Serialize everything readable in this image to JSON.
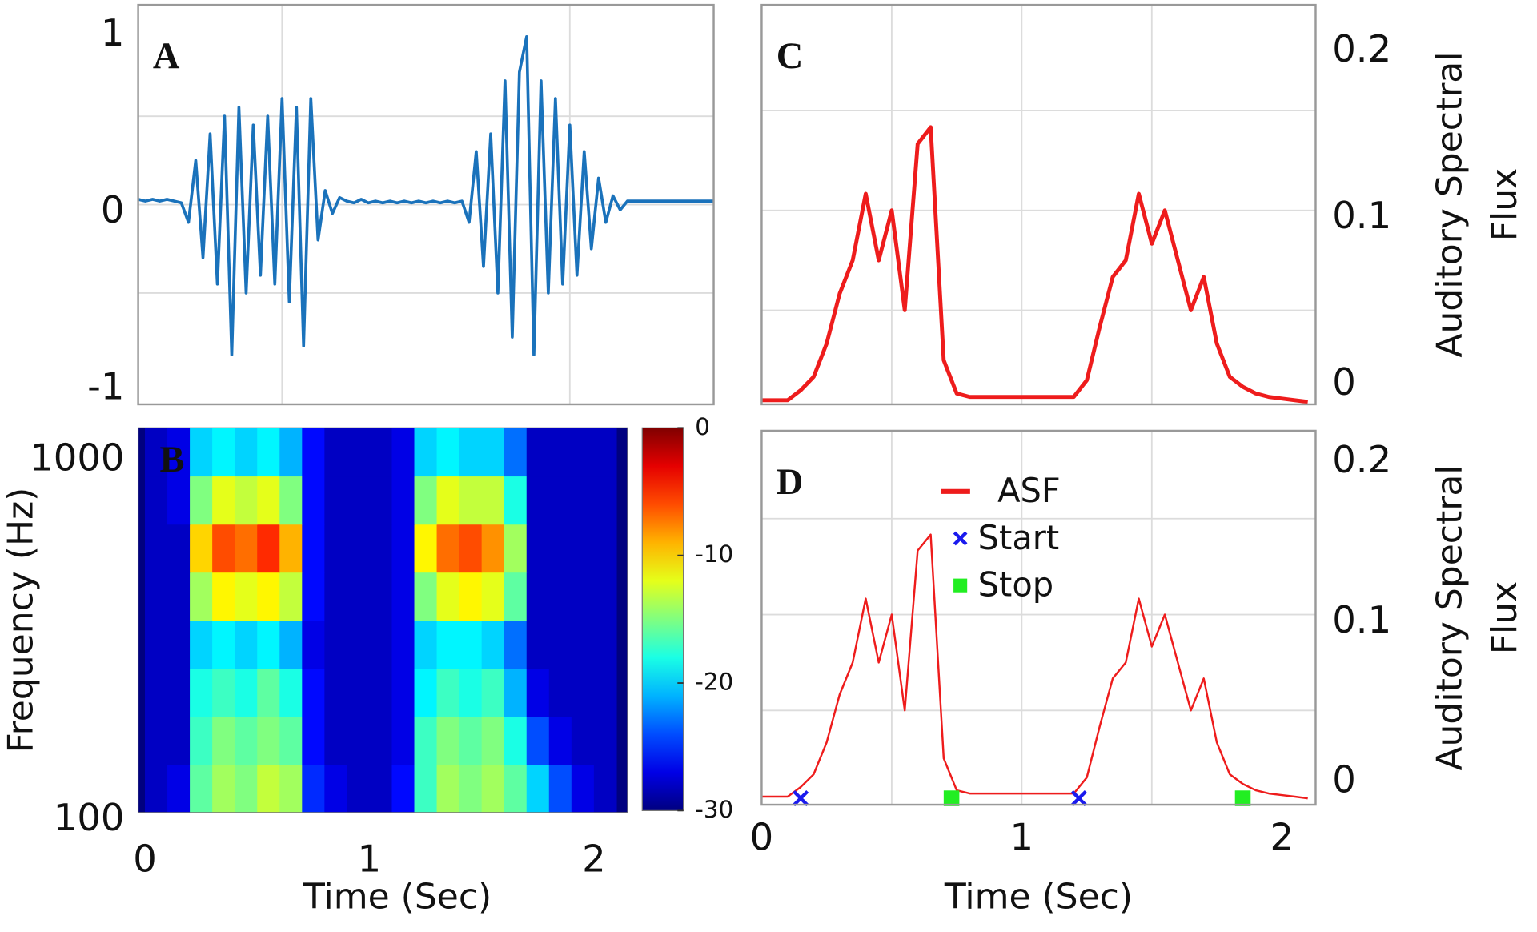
{
  "chart_data": [
    {
      "type": "line",
      "label": "A",
      "label_color": "#111",
      "xlim": [
        0,
        2
      ],
      "ylim": [
        -1.13,
        1.13
      ],
      "yticks": [
        -1,
        0,
        1
      ],
      "yaxis_side": "left",
      "xgrid": [
        0.5,
        1.5
      ],
      "ygrid": [
        -0.5,
        0,
        0.5
      ],
      "series": [
        {
          "color": "#1a72bb",
          "linewidth": 3,
          "x": [
            0,
            0.025,
            0.05,
            0.075,
            0.1,
            0.125,
            0.15,
            0.175,
            0.2,
            0.225,
            0.25,
            0.275,
            0.3,
            0.325,
            0.35,
            0.375,
            0.4,
            0.425,
            0.45,
            0.475,
            0.5,
            0.525,
            0.55,
            0.575,
            0.6,
            0.625,
            0.65,
            0.675,
            0.7,
            0.725,
            0.75,
            0.775,
            0.8,
            0.825,
            0.85,
            0.875,
            0.9,
            0.925,
            0.95,
            0.975,
            1,
            1.025,
            1.05,
            1.075,
            1.1,
            1.125,
            1.15,
            1.175,
            1.2,
            1.225,
            1.25,
            1.275,
            1.3,
            1.325,
            1.35,
            1.375,
            1.4,
            1.425,
            1.45,
            1.475,
            1.5,
            1.525,
            1.55,
            1.575,
            1.6,
            1.625,
            1.65,
            1.675,
            1.7,
            1.725,
            1.75,
            1.775,
            1.8,
            1.825,
            1.85,
            1.875,
            1.9,
            1.925,
            1.95,
            1.975,
            2
          ],
          "values": [
            0.03,
            0.02,
            0.03,
            0.02,
            0.03,
            0.02,
            0.01,
            -0.1,
            0.25,
            -0.3,
            0.4,
            -0.45,
            0.5,
            -0.85,
            0.55,
            -0.5,
            0.45,
            -0.4,
            0.5,
            -0.45,
            0.6,
            -0.55,
            0.55,
            -0.8,
            0.6,
            -0.2,
            0.08,
            -0.05,
            0.04,
            0.02,
            0.01,
            0.03,
            0.01,
            0.02,
            0.01,
            0.02,
            0.01,
            0.02,
            0.01,
            0.02,
            0.01,
            0.02,
            0.01,
            0.02,
            0.01,
            0.02,
            -0.1,
            0.3,
            -0.35,
            0.4,
            -0.5,
            0.7,
            -0.75,
            0.75,
            0.95,
            -0.85,
            0.7,
            -0.5,
            0.6,
            -0.45,
            0.45,
            -0.4,
            0.3,
            -0.25,
            0.15,
            -0.1,
            0.05,
            -0.03,
            0.02,
            0.02,
            0.02,
            0.02,
            0.02,
            0.02,
            0.02,
            0.02,
            0.02,
            0.02,
            0.02,
            0.02,
            0.02
          ]
        }
      ]
    },
    {
      "type": "heatmap",
      "label": "B",
      "label_color": "#ffffff",
      "xlabel": "Time (Sec)",
      "ylabel": "Frequency (Hz)",
      "xlim": [
        -0.03,
        2.15
      ],
      "ylim": [
        100,
        1170
      ],
      "log_y": true,
      "xticks": [
        0,
        1,
        2
      ],
      "yticks": [
        100,
        1000
      ],
      "colormap": "jet",
      "clim": [
        -30,
        0
      ],
      "cticks": [
        0,
        -10,
        -20,
        -30
      ],
      "x": [
        0,
        0.1,
        0.2,
        0.3,
        0.4,
        0.5,
        0.6,
        0.7,
        0.8,
        0.9,
        1,
        1.1,
        1.2,
        1.3,
        1.4,
        1.5,
        1.6,
        1.7,
        1.8,
        1.9,
        2,
        2.1
      ],
      "y": [
        100,
        136,
        185,
        251,
        342,
        465,
        632,
        860,
        1170
      ],
      "z": [
        [
          -28,
          -27,
          -16,
          -14,
          -15,
          -13,
          -14,
          -25,
          -27,
          -28,
          -28,
          -26,
          -17,
          -14,
          -15,
          -14,
          -16,
          -20,
          -24,
          -27,
          -28
        ],
        [
          -28,
          -28,
          -17,
          -15,
          -16,
          -15,
          -16,
          -26,
          -28,
          -28,
          -28,
          -27,
          -17,
          -15,
          -16,
          -15,
          -18,
          -24,
          -27,
          -28,
          -28
        ],
        [
          -28,
          -28,
          -18,
          -17,
          -18,
          -16,
          -18,
          -26,
          -28,
          -28,
          -28,
          -27,
          -19,
          -17,
          -18,
          -17,
          -21,
          -27,
          -28,
          -28,
          -28
        ],
        [
          -28,
          -28,
          -20,
          -19,
          -20,
          -19,
          -21,
          -27,
          -28,
          -28,
          -28,
          -27,
          -20,
          -19,
          -19,
          -20,
          -23,
          -28,
          -28,
          -28,
          -28
        ],
        [
          -28,
          -28,
          -14,
          -11,
          -12,
          -11,
          -13,
          -26,
          -28,
          -28,
          -28,
          -27,
          -15,
          -12,
          -11,
          -12,
          -16,
          -28,
          -28,
          -28,
          -28
        ],
        [
          -28,
          -28,
          -10,
          -6,
          -7,
          -5,
          -9,
          -26,
          -28,
          -28,
          -28,
          -27,
          -11,
          -7,
          -6,
          -8,
          -14,
          -28,
          -28,
          -28,
          -28
        ],
        [
          -28,
          -27,
          -15,
          -12,
          -13,
          -12,
          -15,
          -26,
          -28,
          -28,
          -28,
          -27,
          -15,
          -12,
          -13,
          -13,
          -18,
          -28,
          -28,
          -28,
          -28
        ],
        [
          -28,
          -27,
          -20,
          -19,
          -20,
          -19,
          -21,
          -26,
          -28,
          -28,
          -28,
          -27,
          -20,
          -19,
          -20,
          -20,
          -23,
          -28,
          -28,
          -28,
          -28
        ]
      ]
    },
    {
      "type": "line",
      "label": "C",
      "label_color": "#111",
      "ylabel": [
        "Auditory Spectral",
        "Flux"
      ],
      "xlim": [
        0,
        2.13
      ],
      "ylim": [
        -0.0165,
        0.2235
      ],
      "yticks": [
        0,
        0.1,
        0.2
      ],
      "yaxis_side": "right",
      "xgrid": [
        0.5,
        1,
        1.5
      ],
      "ygrid": [
        0.04,
        0.1,
        0.16
      ],
      "series": [
        {
          "color": "#ee1c1c",
          "linewidth": 4,
          "x": [
            0,
            0.05,
            0.1,
            0.15,
            0.2,
            0.25,
            0.3,
            0.35,
            0.4,
            0.45,
            0.5,
            0.55,
            0.6,
            0.65,
            0.7,
            0.75,
            0.8,
            0.85,
            0.9,
            0.95,
            1,
            1.05,
            1.1,
            1.15,
            1.2,
            1.25,
            1.3,
            1.35,
            1.4,
            1.45,
            1.5,
            1.55,
            1.6,
            1.65,
            1.7,
            1.75,
            1.8,
            1.85,
            1.9,
            1.95,
            2,
            2.05,
            2.1
          ],
          "values": [
            -0.014,
            -0.014,
            -0.014,
            -0.008,
            0,
            0.02,
            0.05,
            0.07,
            0.11,
            0.07,
            0.1,
            0.04,
            0.14,
            0.15,
            0.01,
            -0.01,
            -0.012,
            -0.012,
            -0.012,
            -0.012,
            -0.012,
            -0.012,
            -0.012,
            -0.012,
            -0.012,
            -0.002,
            0.03,
            0.06,
            0.07,
            0.11,
            0.08,
            0.1,
            0.07,
            0.04,
            0.06,
            0.02,
            0,
            -0.006,
            -0.01,
            -0.012,
            -0.013,
            -0.014,
            -0.015
          ]
        }
      ]
    },
    {
      "type": "line",
      "label": "D",
      "label_color": "#111",
      "xlabel": "Time (Sec)",
      "ylabel": [
        "Auditory Spectral",
        "Flux"
      ],
      "xlim": [
        0,
        2.13
      ],
      "ylim": [
        -0.019,
        0.215
      ],
      "xticks": [
        0,
        1,
        2
      ],
      "yticks": [
        0,
        0.1,
        0.2
      ],
      "yaxis_side": "right",
      "xgrid": [
        0.5,
        1,
        1.5
      ],
      "ygrid": [
        0.04,
        0.1,
        0.16
      ],
      "legend": "upper center",
      "series": [
        {
          "name": "ASF",
          "color": "#ee1c1c",
          "linewidth": 2,
          "x": [
            0,
            0.05,
            0.1,
            0.15,
            0.2,
            0.25,
            0.3,
            0.35,
            0.4,
            0.45,
            0.5,
            0.55,
            0.6,
            0.65,
            0.7,
            0.75,
            0.8,
            0.85,
            0.9,
            0.95,
            1,
            1.05,
            1.1,
            1.15,
            1.2,
            1.25,
            1.3,
            1.35,
            1.4,
            1.45,
            1.5,
            1.55,
            1.6,
            1.65,
            1.7,
            1.75,
            1.8,
            1.85,
            1.9,
            1.95,
            2,
            2.05,
            2.1
          ],
          "values": [
            -0.014,
            -0.014,
            -0.014,
            -0.008,
            0,
            0.02,
            0.05,
            0.07,
            0.11,
            0.07,
            0.1,
            0.04,
            0.14,
            0.15,
            0.01,
            -0.01,
            -0.012,
            -0.012,
            -0.012,
            -0.012,
            -0.012,
            -0.012,
            -0.012,
            -0.012,
            -0.012,
            -0.002,
            0.03,
            0.06,
            0.07,
            0.11,
            0.08,
            0.1,
            0.07,
            0.04,
            0.06,
            0.02,
            0,
            -0.006,
            -0.01,
            -0.012,
            -0.013,
            -0.014,
            -0.015
          ]
        },
        {
          "name": "Start",
          "color": "#1a1aee",
          "marker": "x",
          "x": [
            0.15,
            1.22
          ],
          "values": [
            -0.015,
            -0.015
          ]
        },
        {
          "name": "Stop",
          "color": "#22ee22",
          "marker": "square",
          "x": [
            0.73,
            1.85
          ],
          "values": [
            -0.015,
            -0.015
          ]
        }
      ]
    }
  ]
}
